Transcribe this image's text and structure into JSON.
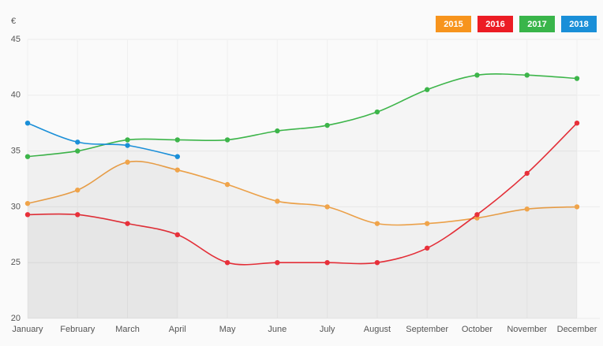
{
  "chart_data": {
    "type": "line",
    "y_label": "€",
    "categories": [
      "January",
      "February",
      "March",
      "April",
      "May",
      "June",
      "July",
      "August",
      "September",
      "October",
      "November",
      "December"
    ],
    "series": [
      {
        "name": "2015",
        "color": "#f0a44a",
        "values": [
          30.3,
          31.5,
          34,
          33.3,
          32,
          30.5,
          30,
          28.5,
          28.5,
          29,
          29.8,
          30
        ]
      },
      {
        "name": "2016",
        "color": "#e8303a",
        "values": [
          29.3,
          29.3,
          28.5,
          27.5,
          25,
          25,
          25,
          25,
          26.3,
          29.3,
          33,
          37.5
        ]
      },
      {
        "name": "2017",
        "color": "#3db54a",
        "values": [
          34.5,
          35,
          36,
          36,
          36,
          36.8,
          37.3,
          38.5,
          40.5,
          41.8,
          41.8,
          41.5
        ]
      },
      {
        "name": "2018",
        "color": "#1a8fd8",
        "values": [
          37.5,
          35.8,
          35.5,
          34.5,
          null,
          null,
          null,
          null,
          null,
          null,
          null,
          null
        ]
      }
    ],
    "legend_colors": [
      "#f7941d",
      "#ec1c24",
      "#39b54a",
      "#1a8fd8"
    ],
    "ylim": [
      20,
      45
    ],
    "yticks": [
      20,
      25,
      30,
      35,
      40,
      45
    ],
    "grid": true,
    "legend": "top right"
  }
}
